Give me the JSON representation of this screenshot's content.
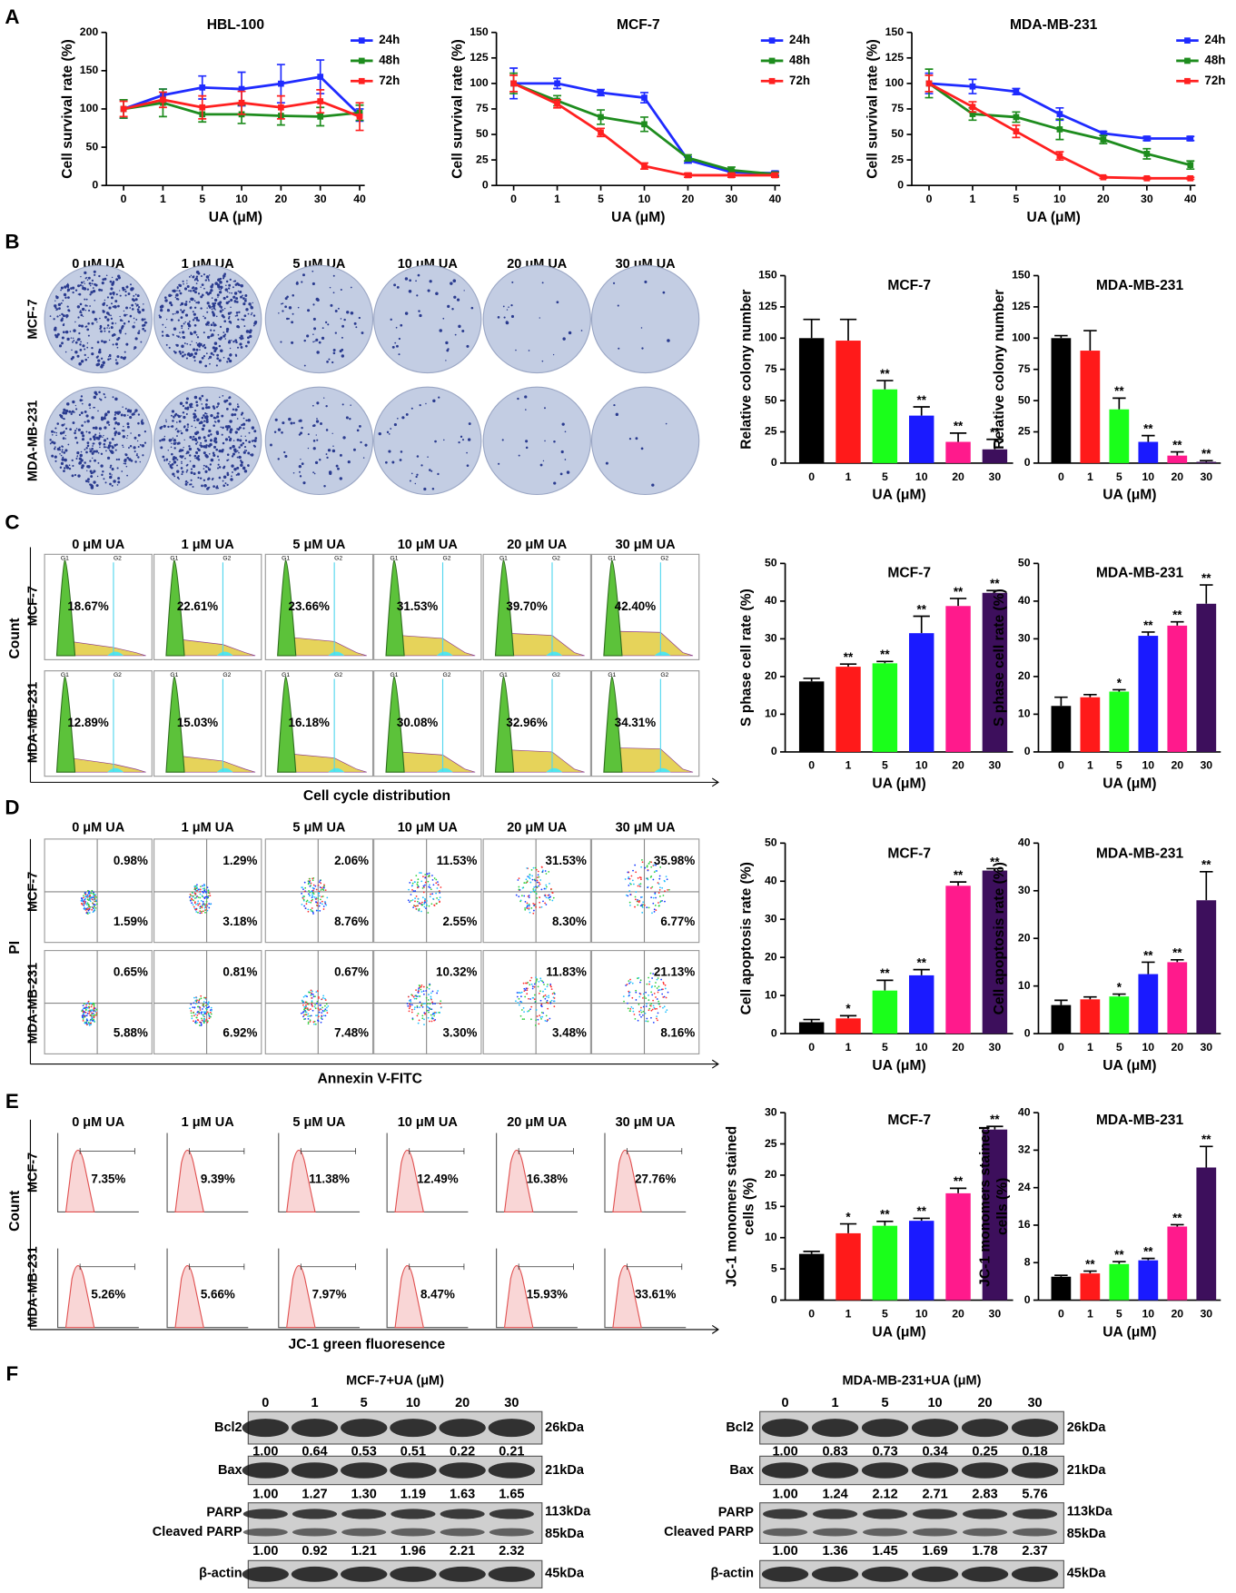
{
  "chart_data": [
    {
      "type": "line",
      "title": "HBL-100",
      "xlabel": "UA  (μM)",
      "ylabel": "Cell survival rate (%)",
      "categories": [
        "0",
        "1",
        "5",
        "10",
        "20",
        "30",
        "40"
      ],
      "ylim": [
        0,
        200
      ],
      "yticks": [
        0,
        50,
        100,
        150,
        200
      ],
      "legend": "upper right",
      "series": [
        {
          "name": "24h",
          "color": "#1f2bff",
          "values": [
            100,
            118,
            128,
            126,
            133,
            142,
            92
          ],
          "errors": [
            12,
            8,
            15,
            22,
            25,
            22,
            8
          ]
        },
        {
          "name": "48h",
          "color": "#1e8c1e",
          "values": [
            100,
            108,
            93,
            93,
            91,
            90,
            95
          ],
          "errors": [
            12,
            18,
            10,
            12,
            12,
            12,
            10
          ]
        },
        {
          "name": "72h",
          "color": "#ff2020",
          "values": [
            100,
            112,
            102,
            108,
            102,
            110,
            90
          ],
          "errors": [
            10,
            10,
            15,
            15,
            15,
            15,
            18
          ]
        }
      ]
    },
    {
      "type": "line",
      "title": "MCF-7",
      "xlabel": "UA  (μM)",
      "ylabel": "Cell survival rate (%)",
      "categories": [
        "0",
        "1",
        "5",
        "10",
        "20",
        "30",
        "40"
      ],
      "ylim": [
        0,
        150
      ],
      "yticks": [
        0,
        25,
        50,
        75,
        100,
        125,
        150
      ],
      "legend": "upper right",
      "series": [
        {
          "name": "24h",
          "color": "#1f2bff",
          "values": [
            100,
            100,
            91,
            86,
            25,
            13,
            12
          ],
          "errors": [
            15,
            5,
            3,
            5,
            3,
            2,
            2
          ]
        },
        {
          "name": "48h",
          "color": "#1e8c1e",
          "values": [
            100,
            83,
            67,
            60,
            27,
            15,
            11
          ],
          "errors": [
            10,
            5,
            7,
            7,
            3,
            3,
            2
          ]
        },
        {
          "name": "72h",
          "color": "#ff2020",
          "values": [
            100,
            80,
            52,
            19,
            10,
            10,
            10
          ],
          "errors": [
            8,
            4,
            4,
            3,
            2,
            2,
            2
          ]
        }
      ]
    },
    {
      "type": "line",
      "title": "MDA-MB-231",
      "xlabel": "UA  (μM)",
      "ylabel": "Cell survival rate (%)",
      "categories": [
        "0",
        "1",
        "5",
        "10",
        "20",
        "30",
        "40"
      ],
      "ylim": [
        0,
        150
      ],
      "yticks": [
        0,
        25,
        50,
        75,
        100,
        125,
        150
      ],
      "legend": "upper right",
      "series": [
        {
          "name": "24h",
          "color": "#1f2bff",
          "values": [
            100,
            97,
            92,
            70,
            51,
            46,
            46
          ],
          "errors": [
            10,
            7,
            3,
            6,
            2,
            2,
            2
          ]
        },
        {
          "name": "48h",
          "color": "#1e8c1e",
          "values": [
            100,
            70,
            67,
            55,
            45,
            31,
            20
          ],
          "errors": [
            14,
            6,
            5,
            10,
            4,
            5,
            4
          ]
        },
        {
          "name": "72h",
          "color": "#ff2020",
          "values": [
            100,
            77,
            53,
            29,
            8,
            7,
            7
          ],
          "errors": [
            8,
            5,
            6,
            4,
            1,
            1,
            1
          ]
        }
      ]
    },
    {
      "type": "bar",
      "title": "MCF-7",
      "xlabel": "UA (μM)",
      "ylabel": "Relative colony number",
      "categories": [
        "0",
        "1",
        "5",
        "10",
        "20",
        "30"
      ],
      "ylim": [
        0,
        150
      ],
      "yticks": [
        0,
        25,
        50,
        75,
        100,
        125,
        150
      ],
      "colors": [
        "#000000",
        "#ff1a1a",
        "#1aff1a",
        "#1a1aff",
        "#ff1a8c",
        "#3d0f5c"
      ],
      "values": [
        100,
        98,
        59,
        38,
        17,
        11
      ],
      "errors": [
        15,
        17,
        7,
        7,
        7,
        8
      ],
      "annotations": [
        null,
        null,
        "**",
        "**",
        "**",
        "**"
      ]
    },
    {
      "type": "bar",
      "title": "MDA-MB-231",
      "xlabel": "UA (μM)",
      "ylabel": "Relative colony number",
      "categories": [
        "0",
        "1",
        "5",
        "10",
        "20",
        "30"
      ],
      "ylim": [
        0,
        150
      ],
      "yticks": [
        0,
        25,
        50,
        75,
        100,
        125,
        150
      ],
      "colors": [
        "#000000",
        "#ff1a1a",
        "#1aff1a",
        "#1a1aff",
        "#ff1a8c",
        "#3d0f5c"
      ],
      "values": [
        100,
        90,
        43,
        17,
        6,
        1
      ],
      "errors": [
        2,
        16,
        9,
        5,
        3,
        1
      ],
      "annotations": [
        null,
        null,
        "**",
        "**",
        "**",
        "**"
      ]
    },
    {
      "type": "bar",
      "title": "MCF-7",
      "xlabel": "UA (μM)",
      "ylabel": "S phase cell  rate (%)",
      "categories": [
        "0",
        "1",
        "5",
        "10",
        "20",
        "30"
      ],
      "ylim": [
        0,
        50
      ],
      "yticks": [
        0,
        10,
        20,
        30,
        40,
        50
      ],
      "colors": [
        "#000000",
        "#ff1a1a",
        "#1aff1a",
        "#1a1aff",
        "#ff1a8c",
        "#3d0f5c"
      ],
      "values": [
        18.7,
        22.6,
        23.5,
        31.5,
        38.7,
        42.2
      ],
      "errors": [
        0.8,
        0.7,
        0.5,
        4.5,
        2,
        0.6
      ],
      "annotations": [
        null,
        "**",
        "**",
        "**",
        "**",
        "**"
      ]
    },
    {
      "type": "bar",
      "title": "MDA-MB-231",
      "xlabel": "UA (μM)",
      "ylabel": "S phase cell rate (%)",
      "categories": [
        "0",
        "1",
        "5",
        "10",
        "20",
        "30"
      ],
      "ylim": [
        0,
        50
      ],
      "yticks": [
        0,
        10,
        20,
        30,
        40,
        50
      ],
      "colors": [
        "#000000",
        "#ff1a1a",
        "#1aff1a",
        "#1a1aff",
        "#ff1a8c",
        "#3d0f5c"
      ],
      "values": [
        12.2,
        14.5,
        16,
        30.8,
        33.5,
        39.3
      ],
      "errors": [
        2.3,
        0.7,
        0.5,
        1,
        1,
        5
      ],
      "annotations": [
        null,
        null,
        "*",
        "**",
        "**",
        "**"
      ]
    },
    {
      "type": "bar",
      "title": "MCF-7",
      "xlabel": "UA (μM)",
      "ylabel": "Cell apoptosis rate (%)",
      "categories": [
        "0",
        "1",
        "5",
        "10",
        "20",
        "30"
      ],
      "ylim": [
        0,
        50
      ],
      "yticks": [
        0,
        10,
        20,
        30,
        40,
        50
      ],
      "colors": [
        "#000000",
        "#ff1a1a",
        "#1aff1a",
        "#1a1aff",
        "#ff1a8c",
        "#3d0f5c"
      ],
      "values": [
        3,
        4,
        11.3,
        15.3,
        38.8,
        42.8
      ],
      "errors": [
        0.7,
        0.7,
        2.7,
        1.5,
        1,
        0.5
      ],
      "annotations": [
        null,
        "*",
        "**",
        "**",
        "**",
        "**"
      ]
    },
    {
      "type": "bar",
      "title": "MDA-MB-231",
      "xlabel": "UA (μM)",
      "ylabel": "Cell apoptosis rate (%)",
      "categories": [
        "0",
        "1",
        "5",
        "10",
        "20",
        "30"
      ],
      "ylim": [
        0,
        40
      ],
      "yticks": [
        0,
        10,
        20,
        30,
        40
      ],
      "colors": [
        "#000000",
        "#ff1a1a",
        "#1aff1a",
        "#1a1aff",
        "#ff1a8c",
        "#3d0f5c"
      ],
      "values": [
        6,
        7.2,
        7.8,
        12.5,
        15,
        28
      ],
      "errors": [
        1,
        0.5,
        0.5,
        2.5,
        0.5,
        6
      ],
      "annotations": [
        null,
        null,
        "*",
        "**",
        "**",
        "**"
      ]
    },
    {
      "type": "bar",
      "title": "MCF-7",
      "xlabel": "UA (μM)",
      "ylabel": [
        "JC-1 monomers stained",
        "cells (%)"
      ],
      "categories": [
        "0",
        "1",
        "5",
        "10",
        "20",
        "30"
      ],
      "ylim": [
        0,
        30
      ],
      "yticks": [
        0,
        5,
        10,
        15,
        20,
        25,
        30
      ],
      "colors": [
        "#000000",
        "#ff1a1a",
        "#1aff1a",
        "#1a1aff",
        "#ff1a8c",
        "#3d0f5c"
      ],
      "values": [
        7.4,
        10.7,
        11.9,
        12.7,
        17.1,
        27.3
      ],
      "errors": [
        0.4,
        1.5,
        0.7,
        0.4,
        0.8,
        0.5
      ],
      "annotations": [
        null,
        "*",
        "**",
        "**",
        "**",
        "**"
      ]
    },
    {
      "type": "bar",
      "title": "MDA-MB-231",
      "xlabel": "UA (μM)",
      "ylabel": [
        "JC-1 monomers stained",
        "cells (%)"
      ],
      "categories": [
        "0",
        "1",
        "5",
        "10",
        "20",
        "30"
      ],
      "ylim": [
        0,
        40
      ],
      "yticks": [
        0,
        8,
        16,
        24,
        32,
        40
      ],
      "colors": [
        "#000000",
        "#ff1a1a",
        "#1aff1a",
        "#1a1aff",
        "#ff1a8c",
        "#3d0f5c"
      ],
      "values": [
        5,
        5.7,
        7.7,
        8.5,
        15.7,
        28.3
      ],
      "errors": [
        0.3,
        0.5,
        0.5,
        0.4,
        0.4,
        4.5
      ],
      "annotations": [
        null,
        "**",
        "**",
        "**",
        "**",
        "**"
      ]
    }
  ],
  "figure": {
    "panel_letters": [
      "A",
      "B",
      "C",
      "D",
      "E",
      "F"
    ],
    "ua_labels": [
      "0 μM UA",
      "1 μM UA",
      "5 μM UA",
      "10 μM UA",
      "20 μM UA",
      "30 μM UA"
    ],
    "row_labels": [
      "MCF-7",
      "MDA-MB-231"
    ],
    "cell_cycle": {
      "ylabel": "Count",
      "xlabel": "Cell cycle distribution",
      "gates": [
        "G1",
        "G2"
      ],
      "rows": [
        [
          "18.67%",
          "22.61%",
          "23.66%",
          "31.53%",
          "39.70%",
          "42.40%"
        ],
        [
          "12.89%",
          "15.03%",
          "16.18%",
          "30.08%",
          "32.96%",
          "34.31%"
        ]
      ]
    },
    "apoptosis": {
      "ylabel": "PI",
      "xlabel": "Annexin V-FITC",
      "upper": [
        [
          "0.98%",
          "1.29%",
          "2.06%",
          "11.53%",
          "31.53%",
          "35.98%"
        ],
        [
          "0.65%",
          "0.81%",
          "0.67%",
          "10.32%",
          "11.83%",
          "21.13%"
        ]
      ],
      "lower": [
        [
          "1.59%",
          "3.18%",
          "8.76%",
          "2.55%",
          "8.30%",
          "6.77%"
        ],
        [
          "5.88%",
          "6.92%",
          "7.48%",
          "3.30%",
          "3.48%",
          "8.16%"
        ]
      ]
    },
    "jc1": {
      "ylabel": "Count",
      "xlabel": "JC-1 green fluoresence",
      "rows": [
        [
          "7.35%",
          "9.39%",
          "11.38%",
          "12.49%",
          "16.38%",
          "27.76%"
        ],
        [
          "5.26%",
          "5.66%",
          "7.97%",
          "8.47%",
          "15.93%",
          "33.61%"
        ]
      ]
    },
    "blots": [
      {
        "title": "MCF-7+UA (μM)",
        "concentrations": [
          "0",
          "1",
          "5",
          "10",
          "20",
          "30"
        ],
        "rows": [
          {
            "label": [
              "Bcl2"
            ],
            "kda": [
              "26kDa"
            ],
            "values": [
              "1.00",
              "0.64",
              "0.53",
              "0.51",
              "0.22",
              "0.21"
            ]
          },
          {
            "label": [
              "Bax"
            ],
            "kda": [
              "21kDa"
            ],
            "values": [
              "1.00",
              "1.27",
              "1.30",
              "1.19",
              "1.63",
              "1.65"
            ]
          },
          {
            "label": [
              "PARP",
              "Cleaved PARP"
            ],
            "kda": [
              "113kDa",
              "85kDa"
            ],
            "values": [
              "1.00",
              "0.92",
              "1.21",
              "1.96",
              "2.21",
              "2.32"
            ]
          },
          {
            "label": [
              "β-actin"
            ],
            "kda": [
              "45kDa"
            ]
          }
        ]
      },
      {
        "title": "MDA-MB-231+UA (μM)",
        "concentrations": [
          "0",
          "1",
          "5",
          "10",
          "20",
          "30"
        ],
        "rows": [
          {
            "label": [
              "Bcl2"
            ],
            "kda": [
              "26kDa"
            ],
            "values": [
              "1.00",
              "0.83",
              "0.73",
              "0.34",
              "0.25",
              "0.18"
            ]
          },
          {
            "label": [
              "Bax"
            ],
            "kda": [
              "21kDa"
            ],
            "values": [
              "1.00",
              "1.24",
              "2.12",
              "2.71",
              "2.83",
              "5.76"
            ]
          },
          {
            "label": [
              "PARP",
              "Cleaved PARP"
            ],
            "kda": [
              "113kDa",
              "85kDa"
            ],
            "values": [
              "1.00",
              "1.36",
              "1.45",
              "1.69",
              "1.78",
              "2.37"
            ]
          },
          {
            "label": [
              "β-actin"
            ],
            "kda": [
              "45kDa"
            ]
          }
        ]
      }
    ]
  }
}
